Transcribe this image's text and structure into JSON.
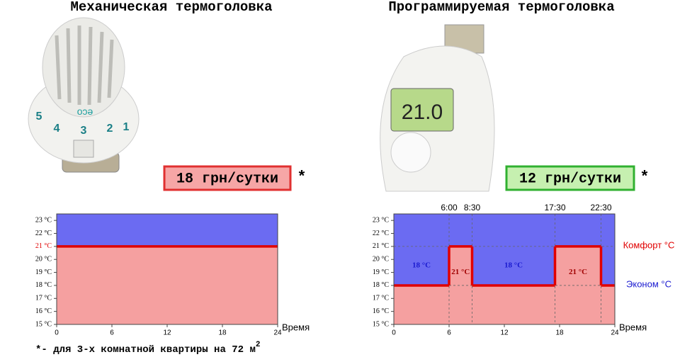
{
  "header": {
    "left_title": "Механическая термоголовка",
    "right_title": "Программируемая термоголовка"
  },
  "devices": [
    {
      "dial_label": "eco",
      "dial_numbers": [
        "1",
        "2",
        "3",
        "4",
        "5"
      ],
      "price": "18 грн/сутки",
      "price_color": "#e03030",
      "price_bg": "#f6a6a6",
      "asterisk": "*"
    },
    {
      "display": "21.0",
      "price": "12 грн/сутки",
      "price_color": "#30b030",
      "price_bg": "#c6f0b0",
      "asterisk": "*"
    }
  ],
  "footnote": {
    "text": "*- для 3-х комнатной квартиры на 72 м",
    "superscript": "2"
  },
  "chart_data": [
    {
      "type": "step-area",
      "x_label": "Время",
      "segments": [
        {
          "start": 0,
          "end": 24,
          "value": 21
        }
      ],
      "xlim": [
        0,
        24
      ],
      "xticks": [
        0,
        6,
        12,
        18,
        24
      ],
      "ylim": [
        15,
        23.5
      ],
      "yticks": [
        {
          "value": 15,
          "label": "15 °C"
        },
        {
          "value": 16,
          "label": "16 °C"
        },
        {
          "value": 17,
          "label": "17 °C"
        },
        {
          "value": 18,
          "label": "18 °C"
        },
        {
          "value": 19,
          "label": "19 °C"
        },
        {
          "value": 20,
          "label": "20 °C"
        },
        {
          "value": 21,
          "label": "21 °C"
        },
        {
          "value": 22,
          "label": "22 °C"
        },
        {
          "value": 23,
          "label": "23 °C"
        }
      ],
      "highlight_ytick": 21,
      "above_color": "#6b6bf2",
      "below_color": "#f5a0a0",
      "line_color": "#e00000",
      "guides": false
    },
    {
      "type": "step-area",
      "x_label": "Время",
      "segments": [
        {
          "start": 0,
          "end": 6,
          "value": 18,
          "label": "18 °C"
        },
        {
          "start": 6,
          "end": 8.5,
          "value": 21,
          "label": "21 °C"
        },
        {
          "start": 8.5,
          "end": 17.5,
          "value": 18,
          "label": "18 °C"
        },
        {
          "start": 17.5,
          "end": 22.5,
          "value": 21,
          "label": "21 °C"
        },
        {
          "start": 22.5,
          "end": 24,
          "value": 18
        }
      ],
      "time_labels": [
        {
          "value": 6,
          "label": "6:00"
        },
        {
          "value": 8.5,
          "label": "8:30"
        },
        {
          "value": 17.5,
          "label": "17:30"
        },
        {
          "value": 22.5,
          "label": "22:30"
        }
      ],
      "xlim": [
        0,
        24
      ],
      "xticks": [
        0,
        6,
        12,
        18,
        24
      ],
      "ylim": [
        15,
        23.5
      ],
      "yticks": [
        {
          "value": 15,
          "label": "15 °C"
        },
        {
          "value": 16,
          "label": "16 °C"
        },
        {
          "value": 17,
          "label": "17 °C"
        },
        {
          "value": 18,
          "label": "18 °C"
        },
        {
          "value": 19,
          "label": "19 °C"
        },
        {
          "value": 20,
          "label": "20 °C"
        },
        {
          "value": 21,
          "label": "21 °C"
        },
        {
          "value": 22,
          "label": "22 °C"
        },
        {
          "value": 23,
          "label": "23 °C"
        }
      ],
      "above_color": "#6b6bf2",
      "below_color": "#f5a0a0",
      "line_color": "#e00000",
      "guides": true,
      "legend": [
        {
          "name": "Комфорт °C",
          "color": "#e00000",
          "value": 21
        },
        {
          "name": "Эконом °C",
          "color": "#1a1ad0",
          "value": 18
        }
      ]
    }
  ]
}
